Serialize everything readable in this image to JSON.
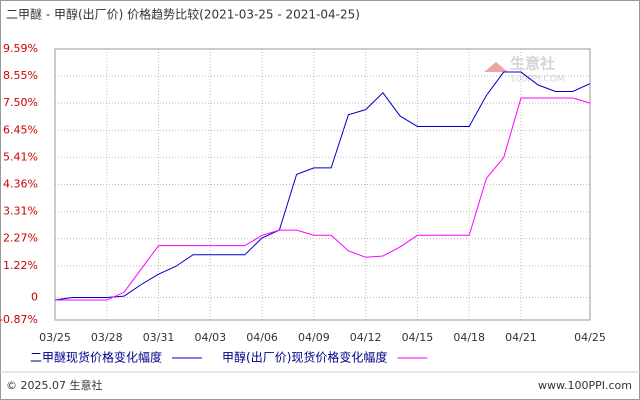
{
  "chart_data": {
    "type": "line",
    "title": "二甲醚 - 甲醇(出厂价) 价格趋势比较(2021-03-25 - 2021-04-25)",
    "x": [
      0,
      1,
      2,
      3,
      4,
      5,
      6,
      7,
      8,
      9,
      10,
      11,
      12,
      13,
      14,
      15,
      16,
      17,
      18,
      19,
      20,
      21,
      22,
      23,
      24,
      25,
      26,
      27,
      28,
      29,
      30,
      31
    ],
    "xlim": [
      0,
      31
    ],
    "xticks": [
      {
        "value": 0,
        "label": "03/25"
      },
      {
        "value": 3,
        "label": "03/28"
      },
      {
        "value": 6,
        "label": "03/31"
      },
      {
        "value": 9,
        "label": "04/03"
      },
      {
        "value": 12,
        "label": "04/06"
      },
      {
        "value": 15,
        "label": "04/09"
      },
      {
        "value": 18,
        "label": "04/12"
      },
      {
        "value": 21,
        "label": "04/15"
      },
      {
        "value": 24,
        "label": "04/18"
      },
      {
        "value": 27,
        "label": "04/21"
      },
      {
        "value": 31,
        "label": "04/25"
      }
    ],
    "ylim": [
      -0.87,
      9.59
    ],
    "yticks": [
      {
        "value": -0.87,
        "label": "-0.87%"
      },
      0,
      {
        "value": 1.22,
        "label": "1.22%"
      },
      {
        "value": 2.27,
        "label": "2.27%"
      },
      {
        "value": 3.31,
        "label": "3.31%"
      },
      {
        "value": 4.36,
        "label": "4.36%"
      },
      {
        "value": 5.41,
        "label": "5.41%"
      },
      {
        "value": 6.45,
        "label": "6.45%"
      },
      {
        "value": 7.5,
        "label": "7.50%"
      },
      {
        "value": 8.55,
        "label": "8.55%"
      },
      {
        "value": 9.59,
        "label": "9.59%"
      }
    ],
    "grid": true,
    "series": [
      {
        "name": "二甲醚现货价格变化幅度",
        "color": "#0000cc",
        "values": [
          -0.1,
          0,
          0,
          0,
          0.05,
          0.5,
          0.9,
          1.2,
          1.65,
          1.65,
          1.65,
          1.65,
          2.3,
          2.6,
          4.75,
          5.0,
          5.0,
          7.05,
          7.25,
          7.9,
          7.0,
          6.6,
          6.6,
          6.6,
          6.6,
          7.8,
          8.7,
          8.7,
          8.2,
          7.95,
          7.95,
          8.25
        ]
      },
      {
        "name": "甲醇(出厂价)现货价格变化幅度",
        "color": "#ff00ff",
        "values": [
          -0.1,
          -0.1,
          -0.1,
          -0.1,
          0.2,
          1.1,
          2.0,
          2.0,
          2.0,
          2.0,
          2.0,
          2.0,
          2.4,
          2.6,
          2.6,
          2.4,
          2.4,
          1.8,
          1.55,
          1.6,
          1.95,
          2.4,
          2.4,
          2.4,
          2.4,
          4.6,
          5.4,
          7.7,
          7.7,
          7.7,
          7.7,
          7.5
        ]
      }
    ]
  },
  "watermark": {
    "name": "生意社",
    "site": "100PPI.COM"
  },
  "footer": {
    "left": "© 2025.07 生意社",
    "right": "www.100PPI.com"
  }
}
